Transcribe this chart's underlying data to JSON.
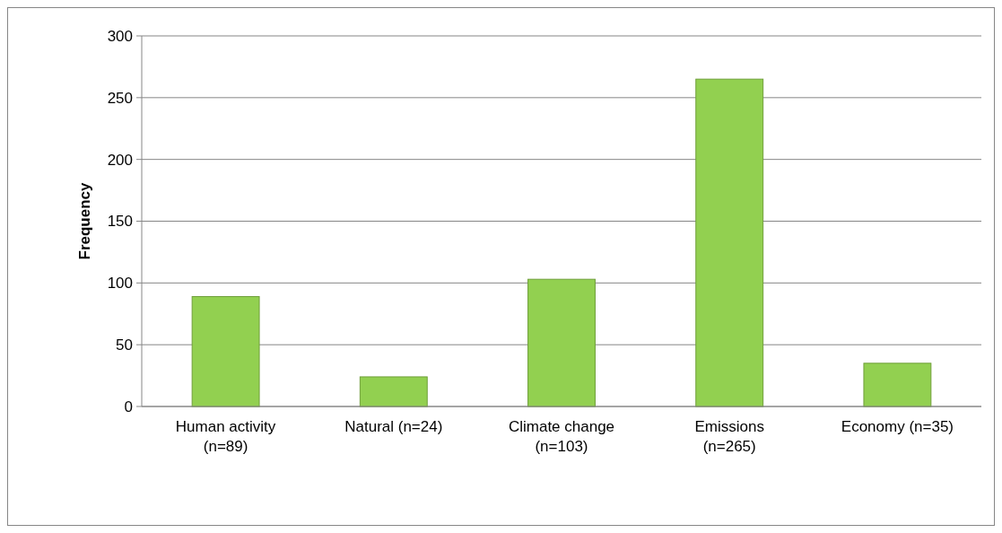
{
  "chart_data": {
    "type": "bar",
    "ylabel": "Frequency",
    "categories": [
      "Human activity (n=89)",
      "Natural (n=24)",
      "Climate change (n=103)",
      "Emissions (n=265)",
      "Economy (n=35)"
    ],
    "values": [
      89,
      24,
      103,
      265,
      35
    ],
    "color": "#92d050",
    "ylim": [
      0,
      300
    ],
    "yticks": [
      0,
      50,
      100,
      150,
      200,
      250,
      300
    ],
    "grid": "y"
  }
}
